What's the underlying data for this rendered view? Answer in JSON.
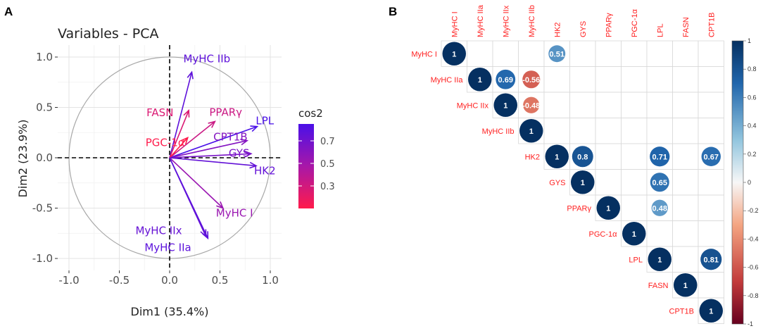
{
  "panels": {
    "a": "A",
    "b": "B"
  },
  "chart_data": [
    {
      "type": "scatter",
      "subtype": "pca-variable-correlation-circle",
      "title": "Variables - PCA",
      "xlabel": "Dim1 (35.4%)",
      "ylabel": "Dim2 (23.9%)",
      "xlim": [
        -1.0,
        1.0
      ],
      "ylim": [
        -1.0,
        1.0
      ],
      "xticks": [
        -1.0,
        -0.5,
        0.0,
        0.5,
        1.0
      ],
      "yticks": [
        -1.0,
        -0.5,
        0.0,
        0.5,
        1.0
      ],
      "xtick_labels": [
        "-1.0",
        "-0.5",
        "0.0",
        "0.5",
        "1.0"
      ],
      "ytick_labels": [
        "-1.0",
        "-0.5",
        "0.0",
        "0.5",
        "1.0"
      ],
      "grid": true,
      "unit_circle": true,
      "legend": {
        "title": "cos2",
        "ticks": [
          0.3,
          0.5,
          0.7
        ],
        "tick_labels": [
          "0.3",
          "0.5",
          "0.7"
        ],
        "low_color": "#ff1b4b",
        "mid_color": "#a817a8",
        "high_color": "#4a10e8",
        "range": [
          0.1,
          0.85
        ]
      },
      "variables": [
        {
          "name": "MyHC IIb",
          "x": 0.22,
          "y": 0.85,
          "cos2": 0.77
        },
        {
          "name": "FASN",
          "x": 0.19,
          "y": 0.47,
          "cos2": 0.26
        },
        {
          "name": "PPARγ",
          "x": 0.45,
          "y": 0.36,
          "cos2": 0.33
        },
        {
          "name": "LPL",
          "x": 0.87,
          "y": 0.31,
          "cos2": 0.85
        },
        {
          "name": "CPT1B",
          "x": 0.77,
          "y": 0.17,
          "cos2": 0.62
        },
        {
          "name": "PGC-1α",
          "x": 0.18,
          "y": 0.2,
          "cos2": 0.07
        },
        {
          "name": "GYS",
          "x": 0.81,
          "y": 0.04,
          "cos2": 0.66
        },
        {
          "name": "HK2",
          "x": 0.86,
          "y": -0.08,
          "cos2": 0.75
        },
        {
          "name": "MyHC I",
          "x": 0.53,
          "y": -0.5,
          "cos2": 0.53
        },
        {
          "name": "MyHC IIx",
          "x": 0.36,
          "y": -0.78,
          "cos2": 0.74
        },
        {
          "name": "MyHC IIa",
          "x": 0.38,
          "y": -0.8,
          "cos2": 0.78
        }
      ]
    },
    {
      "type": "heatmap",
      "subtype": "correlation-matrix-upper",
      "labels": [
        "MyHC I",
        "MyHC IIa",
        "MyHC IIx",
        "MyHC IIb",
        "HK2",
        "GYS",
        "PPARγ",
        "PGC-1α",
        "LPL",
        "FASN",
        "CPT1B"
      ],
      "colorbar": {
        "range": [
          -1,
          1
        ],
        "ticks": [
          1,
          0.8,
          0.6,
          0.4,
          0.2,
          0,
          -0.2,
          -0.4,
          -0.6,
          -0.8,
          -1
        ],
        "tick_labels": [
          "1",
          "0.8",
          "0.6",
          "0.4",
          "0.2",
          "0",
          "-0.2",
          "-0.4",
          "-0.6",
          "-0.8",
          "-1"
        ]
      },
      "cells": [
        {
          "row": 0,
          "col": 0,
          "value": 1,
          "label": "1"
        },
        {
          "row": 0,
          "col": 4,
          "value": 0.51,
          "label": "0.51"
        },
        {
          "row": 1,
          "col": 1,
          "value": 1,
          "label": "1"
        },
        {
          "row": 1,
          "col": 2,
          "value": 0.69,
          "label": "0.69"
        },
        {
          "row": 1,
          "col": 3,
          "value": -0.56,
          "label": "-0.56"
        },
        {
          "row": 2,
          "col": 2,
          "value": 1,
          "label": "1"
        },
        {
          "row": 2,
          "col": 3,
          "value": -0.48,
          "label": "-0.48"
        },
        {
          "row": 3,
          "col": 3,
          "value": 1,
          "label": "1"
        },
        {
          "row": 4,
          "col": 4,
          "value": 1,
          "label": "1"
        },
        {
          "row": 4,
          "col": 5,
          "value": 0.8,
          "label": "0.8"
        },
        {
          "row": 4,
          "col": 8,
          "value": 0.71,
          "label": "0.71"
        },
        {
          "row": 4,
          "col": 10,
          "value": 0.67,
          "label": "0.67"
        },
        {
          "row": 5,
          "col": 5,
          "value": 1,
          "label": "1"
        },
        {
          "row": 5,
          "col": 8,
          "value": 0.65,
          "label": "0.65"
        },
        {
          "row": 6,
          "col": 6,
          "value": 1,
          "label": "1"
        },
        {
          "row": 6,
          "col": 8,
          "value": 0.48,
          "label": "0.48"
        },
        {
          "row": 7,
          "col": 7,
          "value": 1,
          "label": "1"
        },
        {
          "row": 8,
          "col": 8,
          "value": 1,
          "label": "1"
        },
        {
          "row": 8,
          "col": 10,
          "value": 0.81,
          "label": "0.81"
        },
        {
          "row": 9,
          "col": 9,
          "value": 1,
          "label": "1"
        },
        {
          "row": 10,
          "col": 10,
          "value": 1,
          "label": "1"
        }
      ]
    }
  ]
}
